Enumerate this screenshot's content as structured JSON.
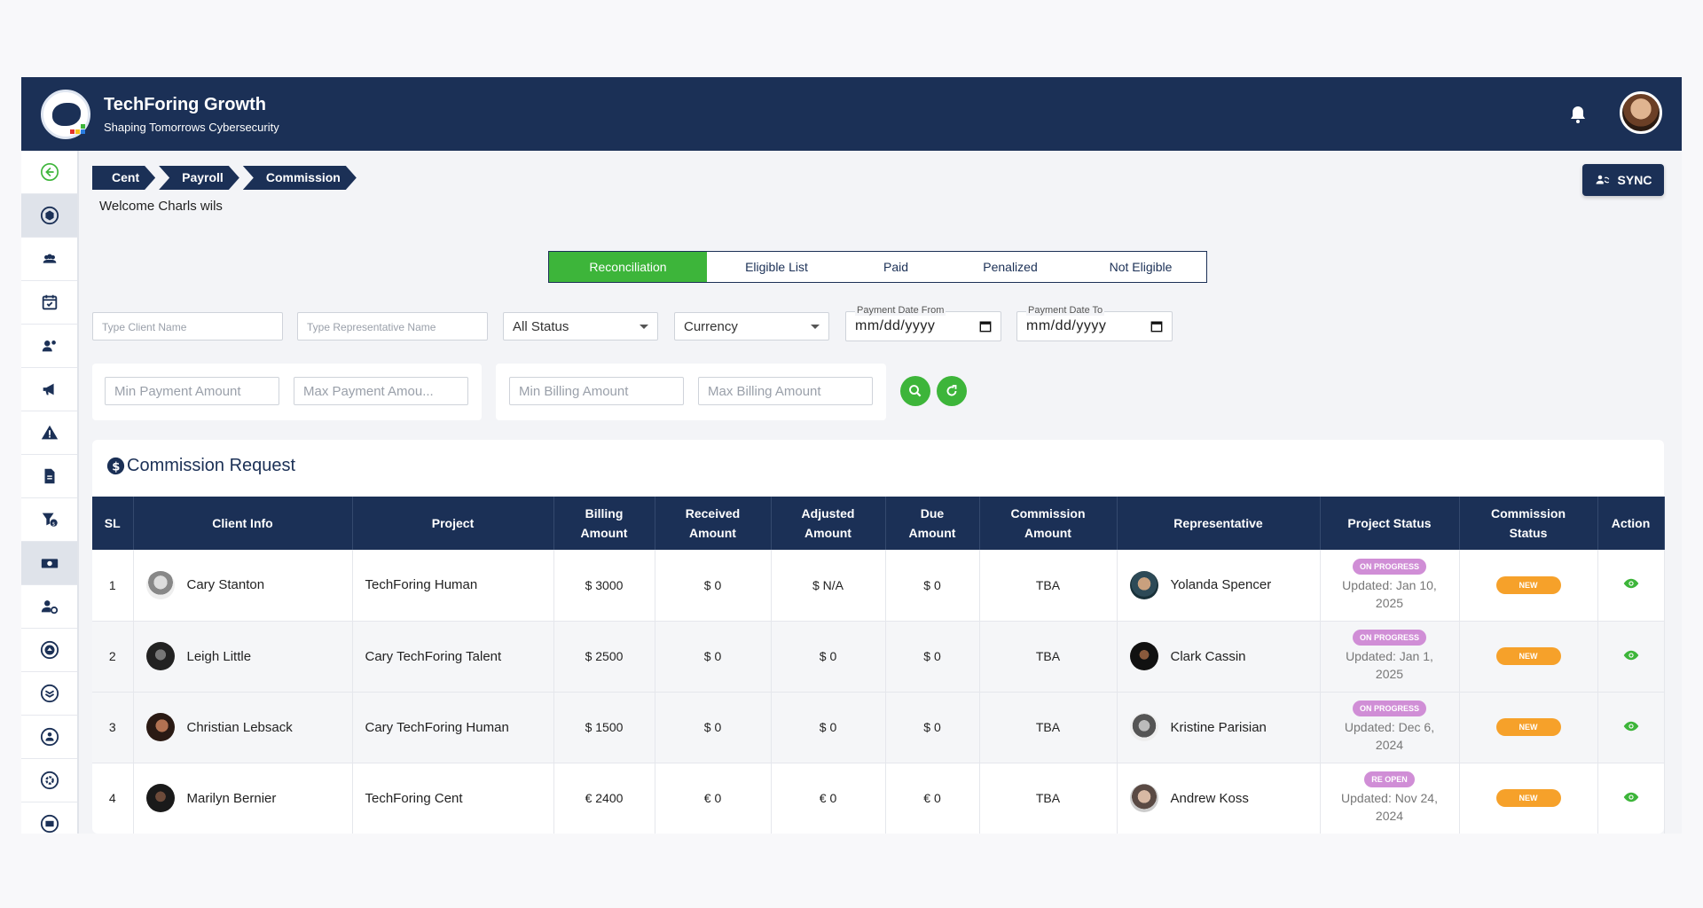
{
  "header": {
    "brand_title": "TechForing Growth",
    "brand_subtitle": "Shaping Tomorrows Cybersecurity"
  },
  "breadcrumb": [
    "Cent",
    "Payroll",
    "Commission"
  ],
  "welcome": "Welcome Charls wils",
  "sync_label": "SYNC",
  "tabs": [
    "Reconciliation",
    "Eligible List",
    "Paid",
    "Penalized",
    "Not Eligible"
  ],
  "filters": {
    "client_placeholder": "Type Client Name",
    "rep_placeholder": "Type Representative Name",
    "status_value": "All Status",
    "currency_value": "Currency",
    "date_from_label": "Payment Date From",
    "date_from_value": "mm/dd/yyyy",
    "date_to_label": "Payment Date To",
    "date_to_value": "mm/dd/yyyy",
    "min_payment_placeholder": "Min Payment Amount",
    "max_payment_placeholder": "Max Payment Amou...",
    "min_billing_placeholder": "Min Billing Amount",
    "max_billing_placeholder": "Max Billing Amount"
  },
  "table": {
    "title": "Commission Request",
    "headers": {
      "sl": "SL",
      "client": "Client Info",
      "project": "Project",
      "billing_1": "Billing",
      "billing_2": "Amount",
      "received_1": "Received",
      "received_2": "Amount",
      "adjusted_1": "Adjusted",
      "adjusted_2": "Amount",
      "due_1": "Due",
      "due_2": "Amount",
      "commission_1": "Commission",
      "commission_2": "Amount",
      "rep": "Representative",
      "project_status": "Project Status",
      "cstatus_1": "Commission",
      "cstatus_2": "Status",
      "action": "Action"
    },
    "rows": [
      {
        "sl": "1",
        "client": "Cary Stanton",
        "project": "TechForing Human",
        "billing": "$ 3000",
        "received": "$ 0",
        "adjusted": "$ N/A",
        "due": "$ 0",
        "commission": "TBA",
        "rep": "Yolanda Spencer",
        "status": "ON PROGRESS",
        "updated_1": "Updated: Jan 10,",
        "updated_2": "2025",
        "cstatus": "NEW"
      },
      {
        "sl": "2",
        "client": "Leigh Little",
        "project": "Cary TechForing Talent",
        "billing": "$ 2500",
        "received": "$ 0",
        "adjusted": "$ 0",
        "due": "$ 0",
        "commission": "TBA",
        "rep": "Clark Cassin",
        "status": "ON PROGRESS",
        "updated_1": "Updated: Jan 1,",
        "updated_2": "2025",
        "cstatus": "NEW"
      },
      {
        "sl": "3",
        "client": "Christian Lebsack",
        "project": "Cary TechForing Human",
        "billing": "$ 1500",
        "received": "$ 0",
        "adjusted": "$ 0",
        "due": "$ 0",
        "commission": "TBA",
        "rep": "Kristine Parisian",
        "status": "ON PROGRESS",
        "updated_1": "Updated: Dec 6,",
        "updated_2": "2024",
        "cstatus": "NEW"
      },
      {
        "sl": "4",
        "client": "Marilyn Bernier",
        "project": "TechForing Cent",
        "billing": "€ 2400",
        "received": "€ 0",
        "adjusted": "€ 0",
        "due": "€ 0",
        "commission": "TBA",
        "rep": "Andrew Koss",
        "status": "RE OPEN",
        "updated_1": "Updated: Nov 24,",
        "updated_2": "2024",
        "cstatus": "NEW"
      }
    ]
  },
  "colors": {
    "navy": "#1b3056",
    "green": "#3db53a",
    "orange": "#f6a12a",
    "pink": "#d08ed6"
  },
  "sidebar_icons": [
    "back-icon",
    "dashboard-icon",
    "team-icon",
    "calendar-icon",
    "users-icon",
    "megaphone-icon",
    "alert-icon",
    "document-icon",
    "filter-money-icon",
    "cash-icon",
    "user-settings-icon",
    "badge-icon-1",
    "badge-icon-2",
    "badge-icon-3",
    "settings-icon",
    "mail-icon"
  ]
}
